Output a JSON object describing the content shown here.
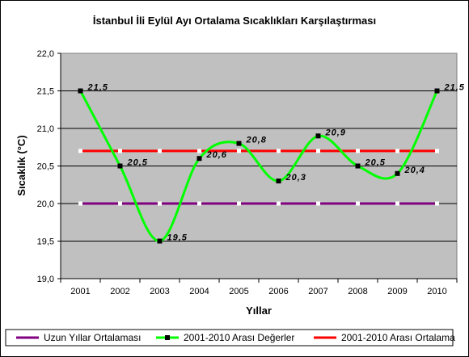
{
  "chart_data": {
    "type": "line",
    "title": "İstanbul İli Eylül Ayı Ortalama Sıcaklıkları Karşılaştırması",
    "xlabel": "Yıllar",
    "ylabel": "Sıcaklık (°C)",
    "ylim": [
      19.0,
      22.0
    ],
    "ytick_step": 0.5,
    "ytick_labels": [
      "19,0",
      "19,5",
      "20,0",
      "20,5",
      "21,0",
      "21,5",
      "22,0"
    ],
    "categories": [
      "2001",
      "2002",
      "2003",
      "2004",
      "2005",
      "2006",
      "2007",
      "2008",
      "2009",
      "2010"
    ],
    "grid": "horizontal",
    "legend_position": "bottom",
    "series": [
      {
        "name": "Uzun Yıllar Ortalaması",
        "color": "#800080",
        "marker": "white-square",
        "values": [
          20.0,
          20.0,
          20.0,
          20.0,
          20.0,
          20.0,
          20.0,
          20.0,
          20.0,
          20.0
        ]
      },
      {
        "name": "2001-2010 Arası Değerler",
        "color": "#00ff00",
        "marker": "black-square",
        "smooth": true,
        "values": [
          21.5,
          20.5,
          19.5,
          20.6,
          20.8,
          20.3,
          20.9,
          20.5,
          20.4,
          21.5
        ],
        "data_labels": [
          "21,5",
          "20,5",
          "19,5",
          "20,6",
          "20,8",
          "20,3",
          "20,9",
          "20,5",
          "20,4",
          "21,5"
        ]
      },
      {
        "name": "2001-2010 Arası Ortalama",
        "color": "#ff0000",
        "marker": "white-square",
        "values": [
          20.7,
          20.7,
          20.7,
          20.7,
          20.7,
          20.7,
          20.7,
          20.7,
          20.7,
          20.7
        ]
      }
    ]
  }
}
